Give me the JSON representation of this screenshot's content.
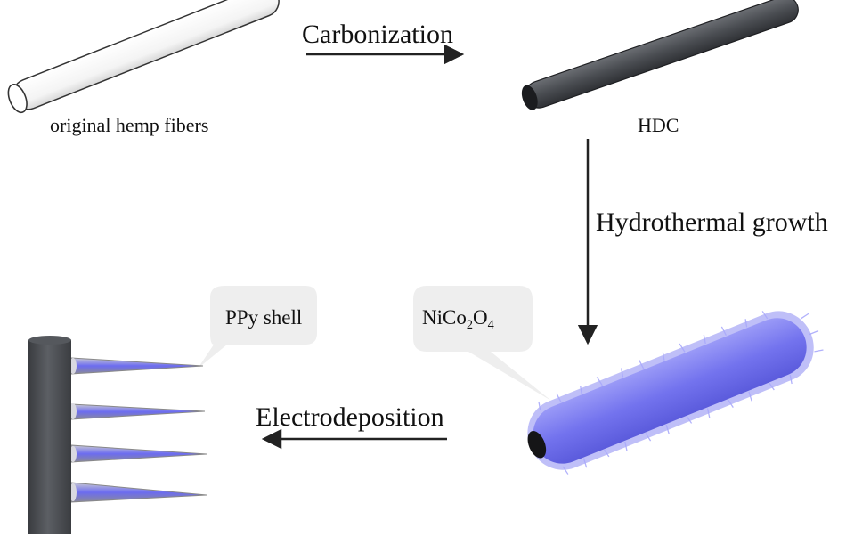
{
  "steps": {
    "carbonization": "Carbonization",
    "hydrothermal": "Hydrothermal growth",
    "electrodeposition": "Electrodeposition"
  },
  "materials": {
    "hemp": "original hemp fibers",
    "hdc": "HDC",
    "ppy_shell": "PPy shell",
    "nico2o4": {
      "ni": "NiCo",
      "sub1": "2",
      "o": "O",
      "sub2": "4"
    }
  },
  "colors": {
    "hemp_fiber": "#ffffff",
    "hdc_fiber": "#4a4d52",
    "nanowire": "#7b7bf0",
    "callout_bg": "#eeeeee",
    "arrow": "#222222"
  }
}
